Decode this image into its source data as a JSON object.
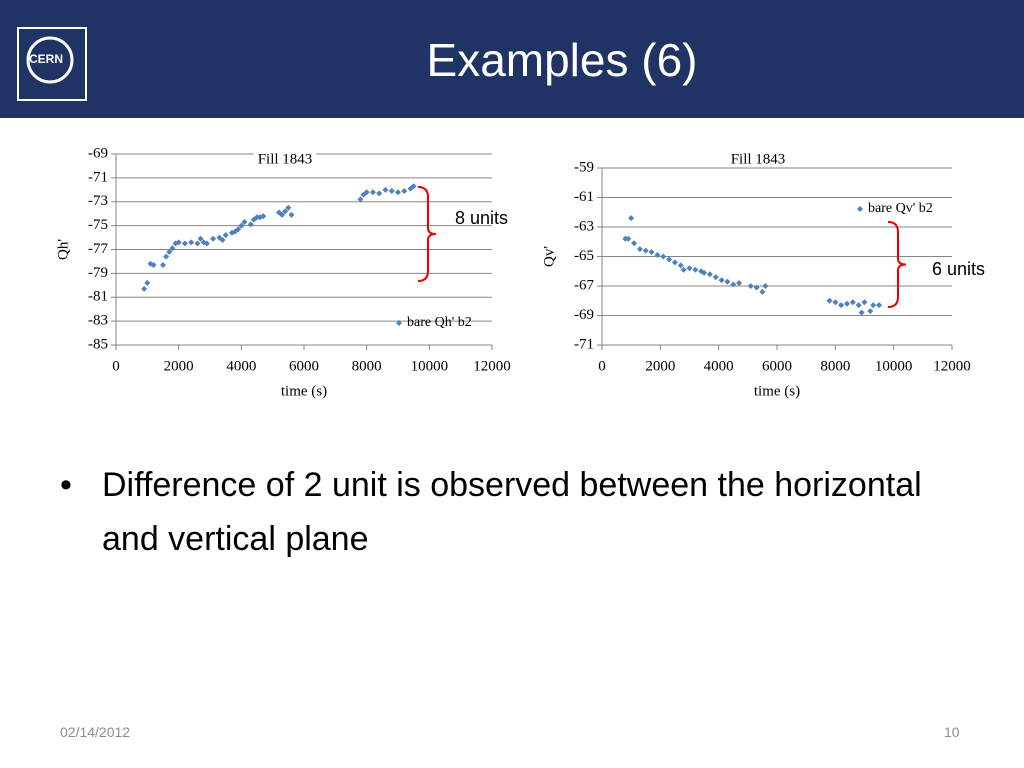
{
  "header": {
    "logo": "CERN",
    "title": "Examples (6)"
  },
  "chart_data": [
    {
      "type": "scatter",
      "title": "Fill 1843",
      "x_label": "time (s)",
      "y_label": "Qh'",
      "annotations": [
        "8 units"
      ],
      "x": [
        900,
        1000,
        1100,
        1200,
        1500,
        1600,
        1700,
        1800,
        1900,
        2000,
        2200,
        2400,
        2600,
        2700,
        2800,
        2900,
        3100,
        3300,
        3400,
        3500,
        3700,
        3800,
        3900,
        4000,
        4100,
        4300,
        4400,
        4500,
        4600,
        4700,
        5200,
        5300,
        5400,
        5500,
        5600,
        7800,
        7900,
        8000,
        8200,
        8400,
        8600,
        8800,
        9000,
        9200,
        9400,
        9500
      ],
      "series": [
        {
          "name": "bare Qh' b2",
          "color": "#4f81bd",
          "values": [
            -80.3,
            -79.8,
            -78.2,
            -78.3,
            -78.3,
            -77.6,
            -77.2,
            -76.9,
            -76.5,
            -76.4,
            -76.5,
            -76.4,
            -76.5,
            -76.1,
            -76.4,
            -76.5,
            -76.1,
            -76.0,
            -76.2,
            -75.8,
            -75.6,
            -75.5,
            -75.3,
            -75.0,
            -74.7,
            -74.9,
            -74.5,
            -74.3,
            -74.3,
            -74.2,
            -73.9,
            -74.1,
            -73.8,
            -73.5,
            -74.1,
            -72.8,
            -72.4,
            -72.2,
            -72.2,
            -72.3,
            -72.0,
            -72.1,
            -72.2,
            -72.1,
            -71.9,
            -71.7
          ]
        }
      ],
      "xlim": [
        0,
        12000
      ],
      "xticks": [
        0,
        2000,
        4000,
        6000,
        8000,
        10000,
        12000
      ],
      "ylim": [
        -85,
        -69
      ],
      "yticks": [
        -85,
        -83,
        -81,
        -79,
        -77,
        -75,
        -73,
        -71,
        -69
      ],
      "grid": true,
      "legend": "lower right"
    },
    {
      "type": "scatter",
      "title": "Fill 1843",
      "x_label": "time (s)",
      "y_label": "Qv'",
      "annotations": [
        "6 units"
      ],
      "x": [
        800,
        900,
        1000,
        1100,
        1300,
        1500,
        1700,
        1900,
        2100,
        2300,
        2500,
        2700,
        2800,
        3000,
        3200,
        3400,
        3500,
        3700,
        3900,
        4100,
        4300,
        4500,
        4700,
        5100,
        5300,
        5500,
        5600,
        7800,
        8000,
        8200,
        8400,
        8600,
        8800,
        8900,
        9000,
        9200,
        9300,
        9500
      ],
      "series": [
        {
          "name": "bare Qv' b2",
          "color": "#4f81bd",
          "values": [
            -63.8,
            -63.8,
            -62.4,
            -64.1,
            -64.5,
            -64.6,
            -64.7,
            -64.9,
            -65.0,
            -65.2,
            -65.4,
            -65.6,
            -65.9,
            -65.8,
            -65.9,
            -66.0,
            -66.1,
            -66.2,
            -66.4,
            -66.6,
            -66.7,
            -66.9,
            -66.8,
            -67.0,
            -67.1,
            -67.4,
            -67.0,
            -68.0,
            -68.1,
            -68.3,
            -68.2,
            -68.1,
            -68.3,
            -68.8,
            -68.1,
            -68.7,
            -68.3,
            -68.3
          ]
        }
      ],
      "xlim": [
        0,
        12000
      ],
      "xticks": [
        0,
        2000,
        4000,
        6000,
        8000,
        10000,
        12000
      ],
      "ylim": [
        -71,
        -59
      ],
      "yticks": [
        -71,
        -69,
        -67,
        -65,
        -63,
        -61,
        -59
      ],
      "grid": true,
      "legend": "upper right"
    }
  ],
  "bullet": "Difference of 2 unit is observed between the horizontal and vertical plane",
  "footer": {
    "date": "02/14/2012",
    "page": "10"
  }
}
